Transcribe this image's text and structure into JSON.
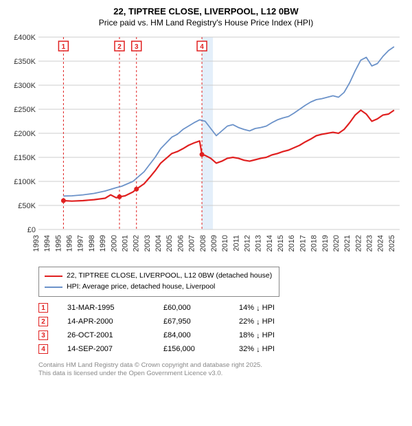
{
  "title_line1": "22, TIPTREE CLOSE, LIVERPOOL, L12 0BW",
  "title_line2": "Price paid vs. HM Land Registry's House Price Index (HPI)",
  "chart": {
    "type": "line",
    "plot_bg": "#ffffff",
    "grid_color": "#cccccc",
    "x_years": [
      1993,
      1994,
      1995,
      1996,
      1997,
      1998,
      1999,
      2000,
      2001,
      2002,
      2003,
      2004,
      2005,
      2006,
      2007,
      2008,
      2009,
      2010,
      2011,
      2012,
      2013,
      2014,
      2015,
      2016,
      2017,
      2018,
      2019,
      2020,
      2021,
      2022,
      2023,
      2024,
      2025
    ],
    "x_min": 1993,
    "x_max": 2025.5,
    "y_min": 0,
    "y_max": 400000,
    "y_ticks": [
      0,
      50000,
      100000,
      150000,
      200000,
      250000,
      300000,
      350000,
      400000
    ],
    "y_tick_labels": [
      "£0",
      "£50K",
      "£100K",
      "£150K",
      "£200K",
      "£250K",
      "£300K",
      "£350K",
      "£400K"
    ],
    "shade_from": 2007.7,
    "shade_to": 2008.7,
    "series": [
      {
        "name": "price_paid",
        "color": "#e02020",
        "width": 2.2,
        "points": [
          [
            1995.25,
            60000
          ],
          [
            1996,
            59000
          ],
          [
            1997,
            60000
          ],
          [
            1998,
            62000
          ],
          [
            1999,
            65000
          ],
          [
            1999.5,
            72000
          ],
          [
            2000.0,
            66000
          ],
          [
            2000.29,
            67950
          ],
          [
            2000.8,
            70000
          ],
          [
            2001.5,
            78000
          ],
          [
            2001.82,
            84000
          ],
          [
            2002.5,
            95000
          ],
          [
            2003,
            108000
          ],
          [
            2003.5,
            122000
          ],
          [
            2004,
            138000
          ],
          [
            2004.5,
            148000
          ],
          [
            2005,
            158000
          ],
          [
            2005.5,
            162000
          ],
          [
            2006,
            168000
          ],
          [
            2006.5,
            175000
          ],
          [
            2007,
            180000
          ],
          [
            2007.5,
            184000
          ],
          [
            2007.71,
            156000
          ],
          [
            2008,
            154000
          ],
          [
            2008.5,
            148000
          ],
          [
            2009,
            138000
          ],
          [
            2009.5,
            142000
          ],
          [
            2010,
            148000
          ],
          [
            2010.5,
            150000
          ],
          [
            2011,
            148000
          ],
          [
            2011.5,
            144000
          ],
          [
            2012,
            142000
          ],
          [
            2012.5,
            145000
          ],
          [
            2013,
            148000
          ],
          [
            2013.5,
            150000
          ],
          [
            2014,
            155000
          ],
          [
            2014.5,
            158000
          ],
          [
            2015,
            162000
          ],
          [
            2015.5,
            165000
          ],
          [
            2016,
            170000
          ],
          [
            2016.5,
            175000
          ],
          [
            2017,
            182000
          ],
          [
            2017.5,
            188000
          ],
          [
            2018,
            195000
          ],
          [
            2018.5,
            198000
          ],
          [
            2019,
            200000
          ],
          [
            2019.5,
            202000
          ],
          [
            2020,
            200000
          ],
          [
            2020.5,
            208000
          ],
          [
            2021,
            222000
          ],
          [
            2021.5,
            238000
          ],
          [
            2022,
            248000
          ],
          [
            2022.5,
            240000
          ],
          [
            2023,
            225000
          ],
          [
            2023.5,
            230000
          ],
          [
            2024,
            238000
          ],
          [
            2024.5,
            240000
          ],
          [
            2025,
            248000
          ]
        ],
        "markers": [
          [
            1995.25,
            60000
          ],
          [
            2000.29,
            67950
          ],
          [
            2001.82,
            84000
          ],
          [
            2007.71,
            156000
          ]
        ]
      },
      {
        "name": "hpi",
        "color": "#6b92c9",
        "width": 1.8,
        "points": [
          [
            1995.25,
            69500
          ],
          [
            1996,
            70000
          ],
          [
            1997,
            72000
          ],
          [
            1998,
            75000
          ],
          [
            1999,
            80000
          ],
          [
            2000,
            87000
          ],
          [
            2000.5,
            90000
          ],
          [
            2001,
            95000
          ],
          [
            2001.5,
            100000
          ],
          [
            2002,
            110000
          ],
          [
            2002.5,
            120000
          ],
          [
            2003,
            135000
          ],
          [
            2003.5,
            150000
          ],
          [
            2004,
            168000
          ],
          [
            2004.5,
            180000
          ],
          [
            2005,
            192000
          ],
          [
            2005.5,
            198000
          ],
          [
            2006,
            208000
          ],
          [
            2006.5,
            215000
          ],
          [
            2007,
            222000
          ],
          [
            2007.5,
            228000
          ],
          [
            2008,
            225000
          ],
          [
            2008.5,
            210000
          ],
          [
            2009,
            195000
          ],
          [
            2009.5,
            205000
          ],
          [
            2010,
            215000
          ],
          [
            2010.5,
            218000
          ],
          [
            2011,
            212000
          ],
          [
            2011.5,
            208000
          ],
          [
            2012,
            205000
          ],
          [
            2012.5,
            210000
          ],
          [
            2013,
            212000
          ],
          [
            2013.5,
            215000
          ],
          [
            2014,
            222000
          ],
          [
            2014.5,
            228000
          ],
          [
            2015,
            232000
          ],
          [
            2015.5,
            235000
          ],
          [
            2016,
            242000
          ],
          [
            2016.5,
            250000
          ],
          [
            2017,
            258000
          ],
          [
            2017.5,
            265000
          ],
          [
            2018,
            270000
          ],
          [
            2018.5,
            272000
          ],
          [
            2019,
            275000
          ],
          [
            2019.5,
            278000
          ],
          [
            2020,
            275000
          ],
          [
            2020.5,
            285000
          ],
          [
            2021,
            305000
          ],
          [
            2021.5,
            330000
          ],
          [
            2022,
            352000
          ],
          [
            2022.5,
            358000
          ],
          [
            2023,
            340000
          ],
          [
            2023.5,
            345000
          ],
          [
            2024,
            360000
          ],
          [
            2024.5,
            372000
          ],
          [
            2025,
            380000
          ]
        ]
      }
    ],
    "marker_labels": [
      {
        "n": "1",
        "x": 1995.25
      },
      {
        "n": "2",
        "x": 2000.29
      },
      {
        "n": "3",
        "x": 2001.82
      },
      {
        "n": "4",
        "x": 2007.71
      }
    ]
  },
  "legend": {
    "items": [
      {
        "color": "#e02020",
        "label": "22, TIPTREE CLOSE, LIVERPOOL, L12 0BW (detached house)"
      },
      {
        "color": "#6b92c9",
        "label": "HPI: Average price, detached house, Liverpool"
      }
    ]
  },
  "transactions": [
    {
      "n": "1",
      "date": "31-MAR-1995",
      "price": "£60,000",
      "delta": "14%",
      "dir": "down",
      "suffix": "HPI"
    },
    {
      "n": "2",
      "date": "14-APR-2000",
      "price": "£67,950",
      "delta": "22%",
      "dir": "down",
      "suffix": "HPI"
    },
    {
      "n": "3",
      "date": "26-OCT-2001",
      "price": "£84,000",
      "delta": "18%",
      "dir": "down",
      "suffix": "HPI"
    },
    {
      "n": "4",
      "date": "14-SEP-2007",
      "price": "£156,000",
      "delta": "32%",
      "dir": "down",
      "suffix": "HPI"
    }
  ],
  "footer_line1": "Contains HM Land Registry data © Crown copyright and database right 2025.",
  "footer_line2": "This data is licensed under the Open Government Licence v3.0."
}
